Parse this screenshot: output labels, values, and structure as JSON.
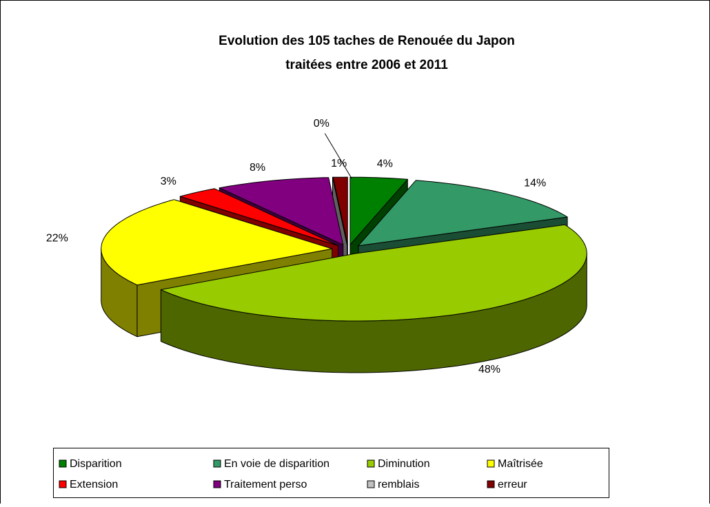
{
  "chart_data": {
    "type": "pie3d",
    "title": [
      "Evolution des 105 taches de Renouée du Japon",
      "traitées entre 2006 et 2011"
    ],
    "categories": [
      "Disparition",
      "En voie de disparition",
      "Diminution",
      "Maîtrisée",
      "Extension",
      "Traitement perso",
      "remblais",
      "erreur"
    ],
    "values": [
      4,
      14,
      48,
      22,
      3,
      8,
      0,
      1
    ],
    "value_labels": [
      "4%",
      "14%",
      "48%",
      "22%",
      "3%",
      "8%",
      "0%",
      "1%"
    ],
    "colors": [
      "#008000",
      "#339966",
      "#99cc00",
      "#ffff00",
      "#ff0000",
      "#800080",
      "#c0c0c0",
      "#800000"
    ],
    "legend": "bottom"
  }
}
